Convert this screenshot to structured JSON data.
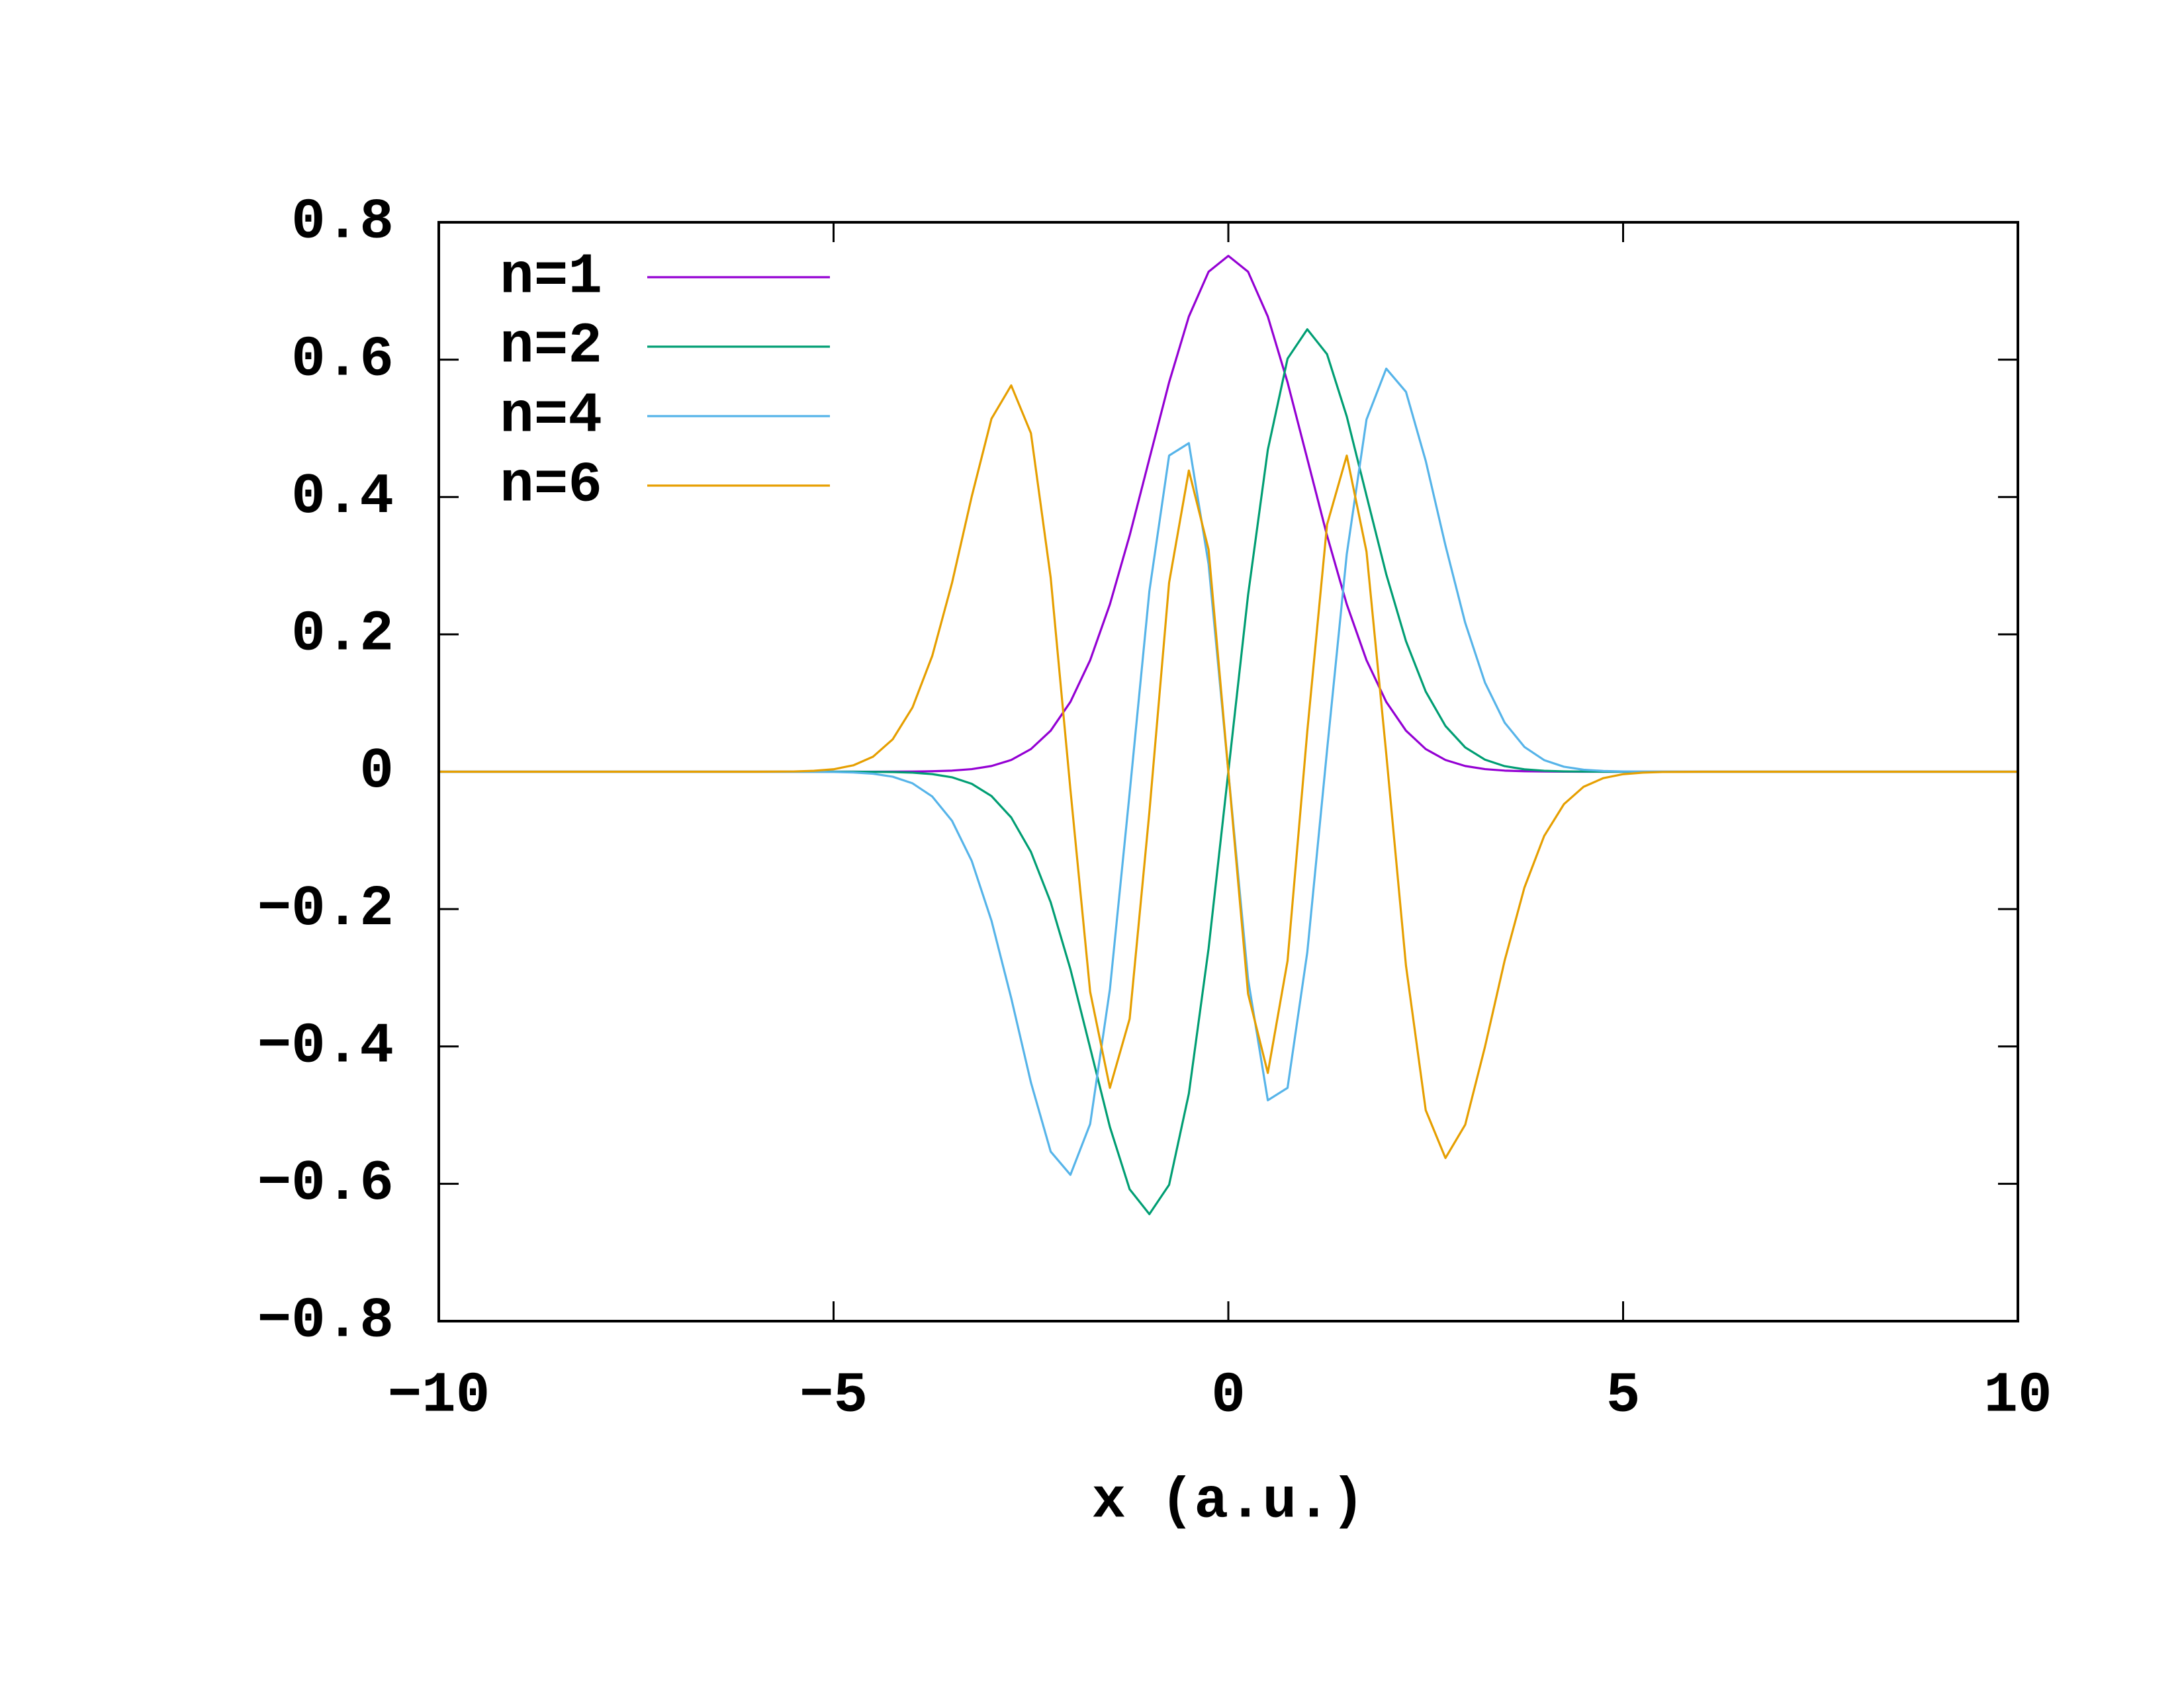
{
  "chart_data": {
    "type": "line",
    "xlabel": "x (a.u.)",
    "x": [
      -10,
      -8,
      -6,
      -5.5,
      -5.25,
      -5,
      -4.75,
      -4.5,
      -4.25,
      -4,
      -3.75,
      -3.5,
      -3.25,
      -3,
      -2.75,
      -2.5,
      -2.25,
      -2,
      -1.75,
      -1.5,
      -1.25,
      -1,
      -0.75,
      -0.5,
      -0.25,
      0,
      0.25,
      0.5,
      0.75,
      1,
      1.25,
      1.5,
      1.75,
      2,
      2.25,
      2.5,
      2.75,
      3,
      3.25,
      3.5,
      3.75,
      4,
      4.25,
      4.5,
      4.75,
      5,
      5.25,
      5.5,
      6,
      8,
      10
    ],
    "series": [
      {
        "name": "n=1",
        "color": "#9400d3",
        "values": [
          0,
          0,
          0,
          0,
          0,
          0,
          0,
          0,
          0.0001,
          0.0003,
          0.0007,
          0.0016,
          0.0038,
          0.0083,
          0.0171,
          0.033,
          0.0598,
          0.1017,
          0.1624,
          0.2438,
          0.3439,
          0.4556,
          0.567,
          0.6628,
          0.728,
          0.7511,
          0.728,
          0.6628,
          0.567,
          0.4556,
          0.3439,
          0.2438,
          0.1624,
          0.1017,
          0.0598,
          0.033,
          0.0171,
          0.0083,
          0.0038,
          0.0016,
          0.0007,
          0.0003,
          0.0001,
          0,
          0,
          0,
          0,
          0,
          0,
          0,
          0
        ]
      },
      {
        "name": "n=2",
        "color": "#009e73",
        "values": [
          0,
          0,
          0,
          0,
          0,
          0,
          0,
          -0.0002,
          -0.0005,
          -0.0014,
          -0.0035,
          -0.0081,
          -0.0176,
          -0.0354,
          -0.0666,
          -0.1167,
          -0.1901,
          -0.2875,
          -0.402,
          -0.5173,
          -0.6079,
          -0.6442,
          -0.6014,
          -0.4687,
          -0.2574,
          0,
          0.2574,
          0.4687,
          0.6014,
          0.6442,
          0.6079,
          0.5173,
          0.402,
          0.2875,
          0.1901,
          0.1167,
          0.0666,
          0.0354,
          0.0176,
          0.0081,
          0.0035,
          0.0014,
          0.0005,
          0.0002,
          0,
          0,
          0,
          0,
          0,
          0,
          0
        ]
      },
      {
        "name": "n=4",
        "color": "#56b4e9",
        "values": [
          0,
          0,
          0,
          0,
          -0.0001,
          -0.0004,
          -0.0011,
          -0.0029,
          -0.0073,
          -0.0169,
          -0.0361,
          -0.0714,
          -0.1299,
          -0.2168,
          -0.3295,
          -0.4526,
          -0.5531,
          -0.5869,
          -0.5129,
          -0.3168,
          -0.031,
          0.263,
          0.4603,
          0.4784,
          0.3021,
          0,
          -0.3021,
          -0.4784,
          -0.4603,
          -0.263,
          0.031,
          0.3168,
          0.5129,
          0.5869,
          0.5531,
          0.4526,
          0.3295,
          0.2168,
          0.1299,
          0.0714,
          0.0361,
          0.0169,
          0.0073,
          0.0029,
          0.0011,
          0.0004,
          0.0001,
          0,
          0,
          0,
          0
        ]
      },
      {
        "name": "n=6",
        "color": "#e69f00",
        "values": [
          0,
          0,
          0,
          0.0004,
          0.0013,
          0.0036,
          0.0093,
          0.0219,
          0.0473,
          0.0936,
          0.1687,
          0.2748,
          0.4008,
          0.514,
          0.5625,
          0.4928,
          0.2825,
          -0.0261,
          -0.3204,
          -0.4603,
          -0.3598,
          -0.0588,
          0.2754,
          0.4386,
          0.3234,
          0,
          -0.3234,
          -0.4386,
          -0.2754,
          0.0588,
          0.3598,
          0.4603,
          0.3204,
          0.0261,
          -0.2825,
          -0.4928,
          -0.5625,
          -0.514,
          -0.4008,
          -0.2748,
          -0.1687,
          -0.0936,
          -0.0473,
          -0.0219,
          -0.0093,
          -0.0036,
          -0.0013,
          -0.0004,
          0,
          0,
          0
        ]
      }
    ],
    "xlim": [
      -10,
      10
    ],
    "xticks": [
      {
        "value": -10,
        "label": "−10"
      },
      {
        "value": -5,
        "label": "−5"
      },
      0,
      5,
      10
    ],
    "ylim": [
      -0.8,
      0.8
    ],
    "yticks": [
      {
        "value": -0.8,
        "label": "−0.8"
      },
      {
        "value": -0.6,
        "label": "−0.6"
      },
      {
        "value": -0.4,
        "label": "−0.4"
      },
      {
        "value": -0.2,
        "label": "−0.2"
      },
      0,
      0.2,
      0.4,
      0.6,
      0.8
    ],
    "legend": "upper left"
  }
}
